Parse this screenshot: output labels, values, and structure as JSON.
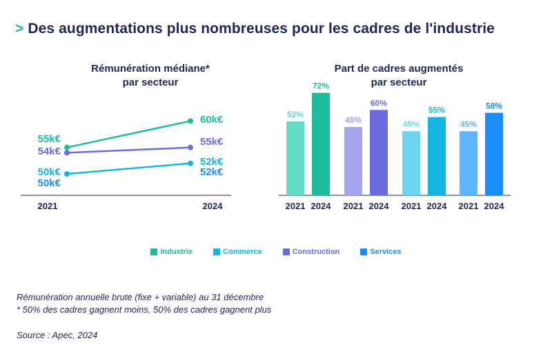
{
  "title": "Des augmentations plus nombreuses pour les cadres de l'industrie",
  "title_arrow": ">",
  "colors": {
    "Industrie": "#1dbc9c",
    "Commerce": "#13b5e3",
    "Construction": "#6b6be0",
    "Services": "#1a8dfb",
    "Industrie_light": "#64dcc8",
    "Commerce_light": "#6fd5f0",
    "Construction_light": "#a4a4ef",
    "Services_light": "#5db6ff",
    "axis": "#1f2459"
  },
  "chart_data": [
    {
      "type": "line",
      "title": "Rémunération médiane*",
      "subtitle": "par secteur",
      "x": [
        "2021",
        "2024"
      ],
      "series": [
        {
          "name": "Industrie",
          "values": [
            55,
            60
          ],
          "labels": [
            "55k€",
            "60k€"
          ]
        },
        {
          "name": "Construction",
          "values": [
            54,
            55
          ],
          "labels": [
            "54k€",
            "55k€"
          ]
        },
        {
          "name": "Commerce",
          "values": [
            50,
            52
          ],
          "labels": [
            "50k€",
            "52k€"
          ]
        },
        {
          "name": "Services",
          "values": [
            50,
            52
          ],
          "labels": [
            "50k€",
            "52k€"
          ]
        }
      ],
      "ylim": [
        47,
        62
      ]
    },
    {
      "type": "bar",
      "title": "Part de cadres augmentés",
      "subtitle": "par secteur",
      "groups": [
        {
          "name": "Industrie",
          "categories": [
            "2021",
            "2024"
          ],
          "values": [
            52,
            72
          ],
          "labels": [
            "52%",
            "72%"
          ]
        },
        {
          "name": "Construction",
          "categories": [
            "2021",
            "2024"
          ],
          "values": [
            48,
            60
          ],
          "labels": [
            "48%",
            "60%"
          ]
        },
        {
          "name": "Commerce",
          "categories": [
            "2021",
            "2024"
          ],
          "values": [
            45,
            55
          ],
          "labels": [
            "45%",
            "55%"
          ]
        },
        {
          "name": "Services",
          "categories": [
            "2021",
            "2024"
          ],
          "values": [
            45,
            58
          ],
          "labels": [
            "45%",
            "58%"
          ]
        }
      ],
      "ylim": [
        0,
        80
      ]
    }
  ],
  "legend": [
    {
      "label": "Industrie",
      "key": "Industrie"
    },
    {
      "label": "Commerce",
      "key": "Commerce"
    },
    {
      "label": "Construction",
      "key": "Construction"
    },
    {
      "label": "Services",
      "key": "Services"
    }
  ],
  "notes": {
    "line1": "Rémunération annuelle brute (fixe + variable) au 31 décembre",
    "line2": "* 50% des cadres gagnent moins, 50% des cadres gagnent plus"
  },
  "source": "Source : Apec, 2024"
}
